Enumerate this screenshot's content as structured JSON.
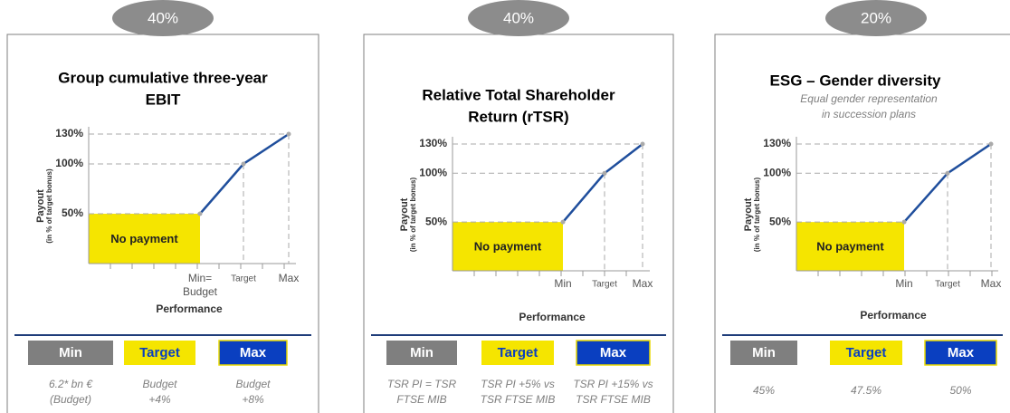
{
  "chart_data": [
    {
      "type": "line",
      "weight": "40%",
      "title": [
        "Group cumulative three-year",
        "EBIT"
      ],
      "categories": [
        "Min=\nBudget",
        "Target",
        "Max"
      ],
      "values": [
        50,
        100,
        130
      ],
      "ylim": [
        0,
        130
      ],
      "yticks": [
        {
          "value": 50,
          "label": "50%"
        },
        {
          "value": 100,
          "label": "100%"
        },
        {
          "value": 130,
          "label": "130%"
        }
      ],
      "ylabel": [
        "Payout",
        "(in % of target bonus)"
      ],
      "xlabel": "Performance",
      "annotation": "No payment",
      "color": "#1f4e9c",
      "table": {
        "headers": [
          "Min",
          "Target",
          "Max"
        ],
        "values": [
          "6.2* bn €\n(Budget)",
          "Budget\n+4%",
          "Budget\n+8%"
        ]
      }
    },
    {
      "type": "line",
      "weight": "40%",
      "title": [
        "Relative Total Shareholder",
        "Return (rTSR)"
      ],
      "categories": [
        "Min",
        "Target",
        "Max"
      ],
      "values": [
        50,
        100,
        130
      ],
      "ylim": [
        0,
        130
      ],
      "yticks": [
        {
          "value": 50,
          "label": "50%"
        },
        {
          "value": 100,
          "label": "100%"
        },
        {
          "value": 130,
          "label": "130%"
        }
      ],
      "ylabel": [
        "Payout",
        "(in % of target bonus)"
      ],
      "xlabel": "Performance",
      "annotation": "No payment",
      "color": "#1f4e9c",
      "table": {
        "headers": [
          "Min",
          "Target",
          "Max"
        ],
        "values": [
          "TSR PI = TSR\nFTSE MIB",
          "TSR PI +5% vs\nTSR FTSE MIB",
          "TSR PI +15% vs\nTSR FTSE MIB"
        ]
      }
    },
    {
      "type": "line",
      "weight": "20%",
      "title": [
        "ESG – Gender diversity"
      ],
      "subtitle": [
        "Equal gender representation",
        "in succession plans"
      ],
      "categories": [
        "Min",
        "Target",
        "Max"
      ],
      "values": [
        50,
        100,
        130
      ],
      "ylim": [
        0,
        130
      ],
      "yticks": [
        {
          "value": 50,
          "label": "50%"
        },
        {
          "value": 100,
          "label": "100%"
        },
        {
          "value": 130,
          "label": "130%"
        }
      ],
      "ylabel": [
        "Payout",
        "(in % of target bonus)"
      ],
      "xlabel": "Performance",
      "annotation": "No payment",
      "color": "#1f4e9c",
      "table": {
        "headers": [
          "Min",
          "Target",
          "Max"
        ],
        "values": [
          "45%",
          "47.5%",
          "50%"
        ]
      }
    }
  ]
}
